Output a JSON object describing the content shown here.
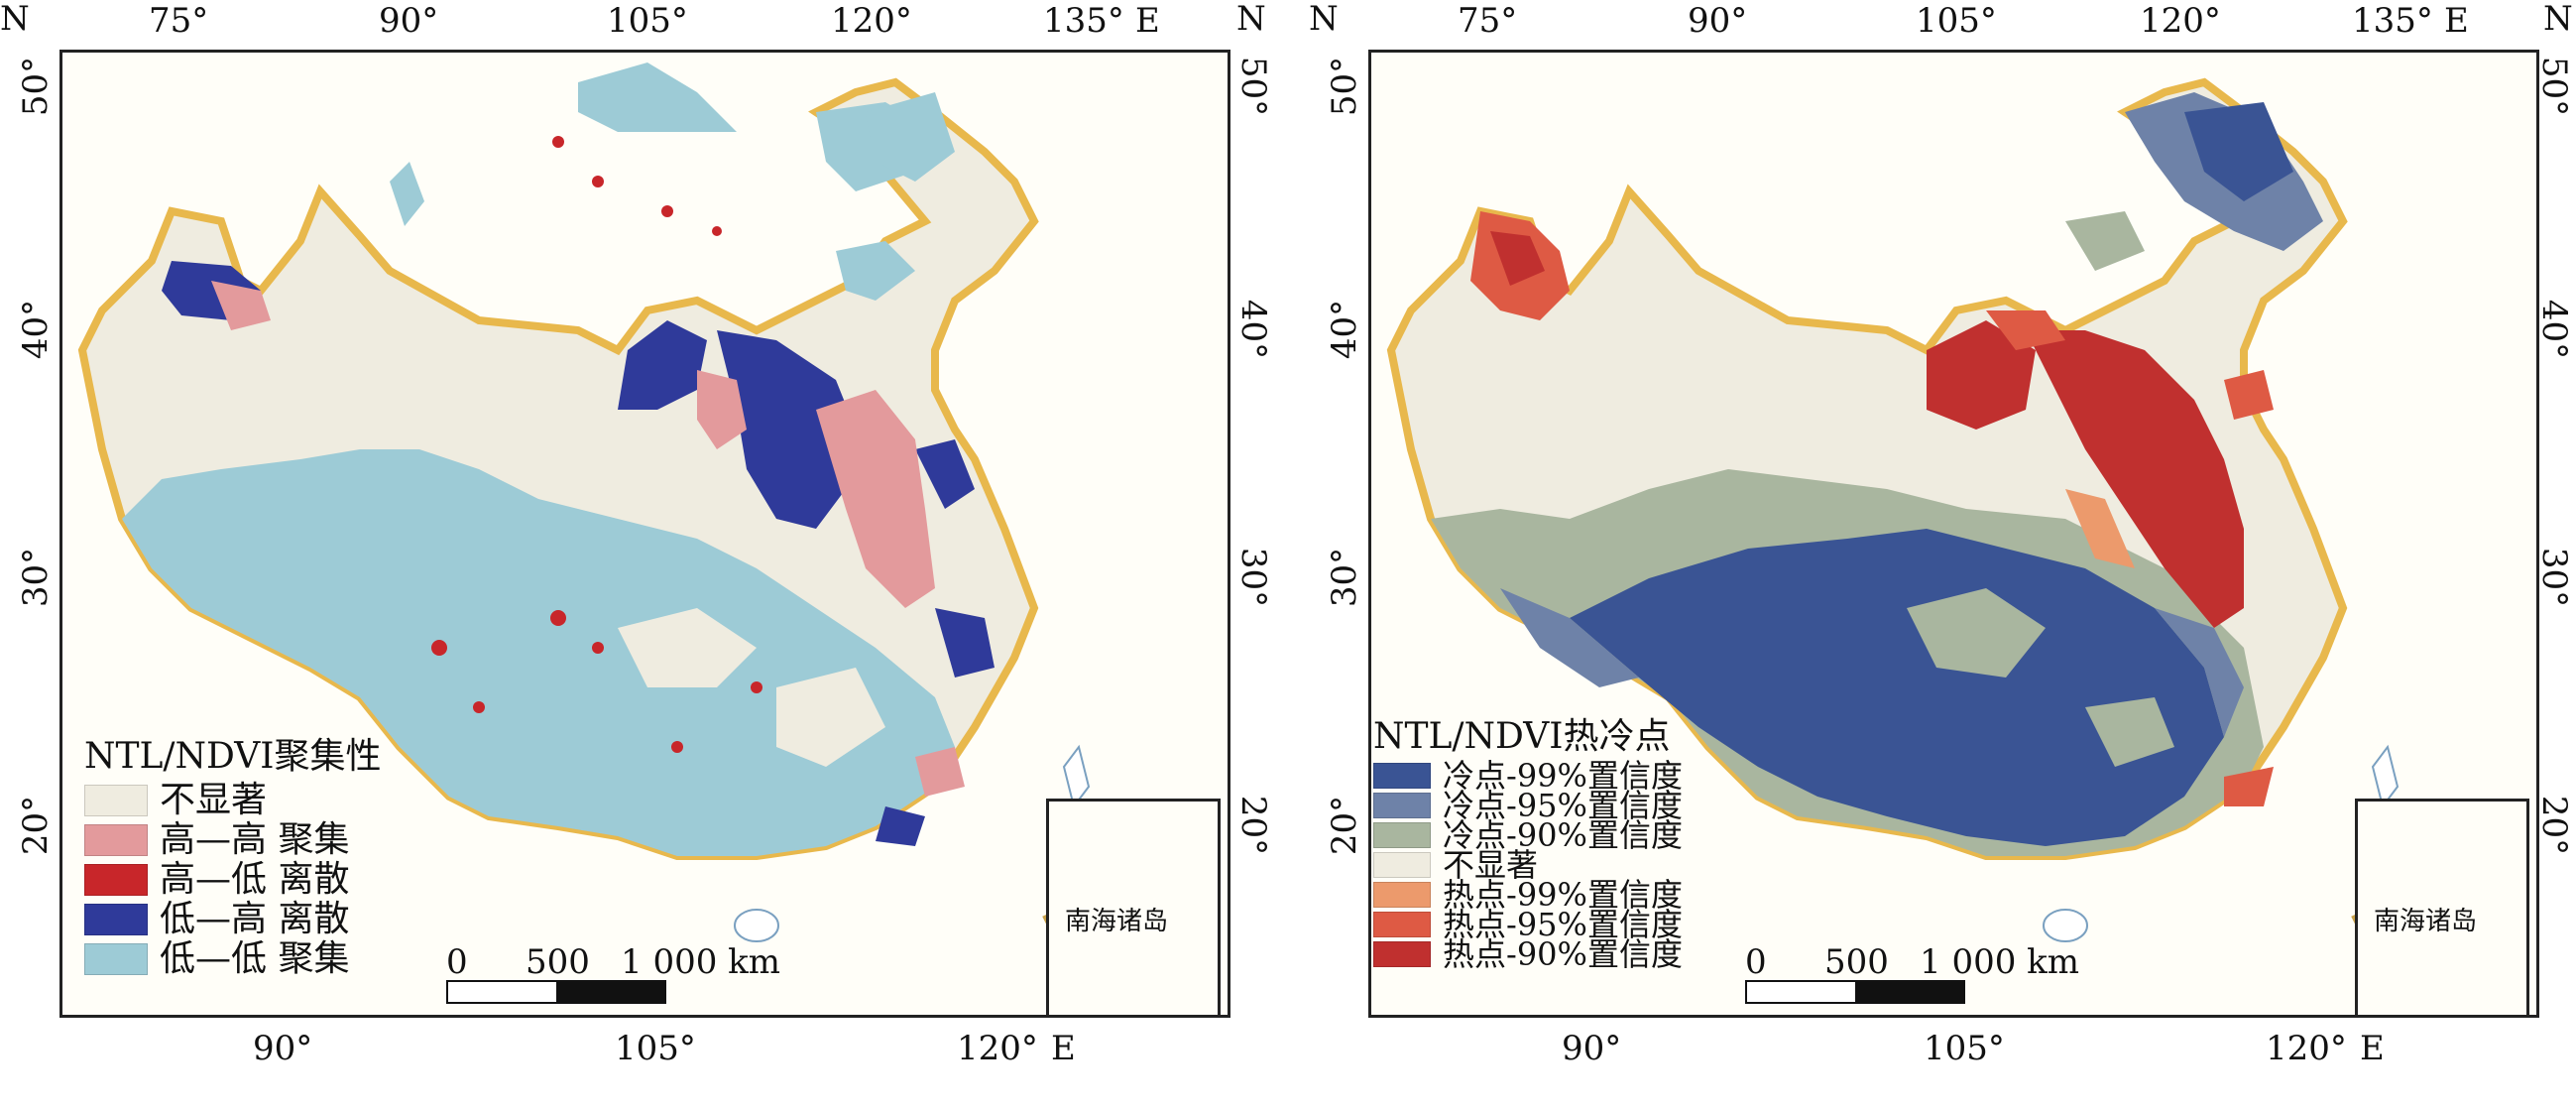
{
  "maps": [
    {
      "id": "left",
      "top_ticks": [
        "75°",
        "90°",
        "105°",
        "120°",
        "135°"
      ],
      "top_east": "E",
      "bottom_ticks": [
        "90°",
        "105°",
        "120°"
      ],
      "bottom_east": "E",
      "lat_ticks": [
        "50°",
        "40°",
        "30°",
        "20°"
      ],
      "north_letter": "N",
      "legend_title": "NTL/NDVI聚集性",
      "legend_items": [
        {
          "label": "不显著",
          "color": "#efece0"
        },
        {
          "label": "高—高 聚集",
          "color": "#e39a9c"
        },
        {
          "label": "高—低 离散",
          "color": "#c8262a"
        },
        {
          "label": "低—高 离散",
          "color": "#2f3a9a"
        },
        {
          "label": "低—低 聚集",
          "color": "#9dcbd6"
        }
      ],
      "scale_labels": [
        "0",
        "500",
        "1 000 km"
      ],
      "inset_label": "南海诸岛"
    },
    {
      "id": "right",
      "top_ticks": [
        "75°",
        "90°",
        "105°",
        "120°",
        "135°"
      ],
      "top_east": "E",
      "bottom_ticks": [
        "90°",
        "105°",
        "120°"
      ],
      "bottom_east": "E",
      "lat_ticks": [
        "50°",
        "40°",
        "30°",
        "20°"
      ],
      "north_letter": "N",
      "legend_title": "NTL/NDVI热冷点",
      "legend_items": [
        {
          "label": "冷点-99%置信度",
          "color": "#3a5494"
        },
        {
          "label": "冷点-95%置信度",
          "color": "#6e82a8"
        },
        {
          "label": "冷点-90%置信度",
          "color": "#a9b69f"
        },
        {
          "label": "不显著",
          "color": "#efece0"
        },
        {
          "label": "热点-99%置信度",
          "color": "#ec9a6c"
        },
        {
          "label": "热点-95%置信度",
          "color": "#de5a44"
        },
        {
          "label": "热点-90%置信度",
          "color": "#c0302f"
        }
      ],
      "scale_labels": [
        "0",
        "500",
        "1 000 km"
      ],
      "inset_label": "南海诸岛"
    }
  ]
}
